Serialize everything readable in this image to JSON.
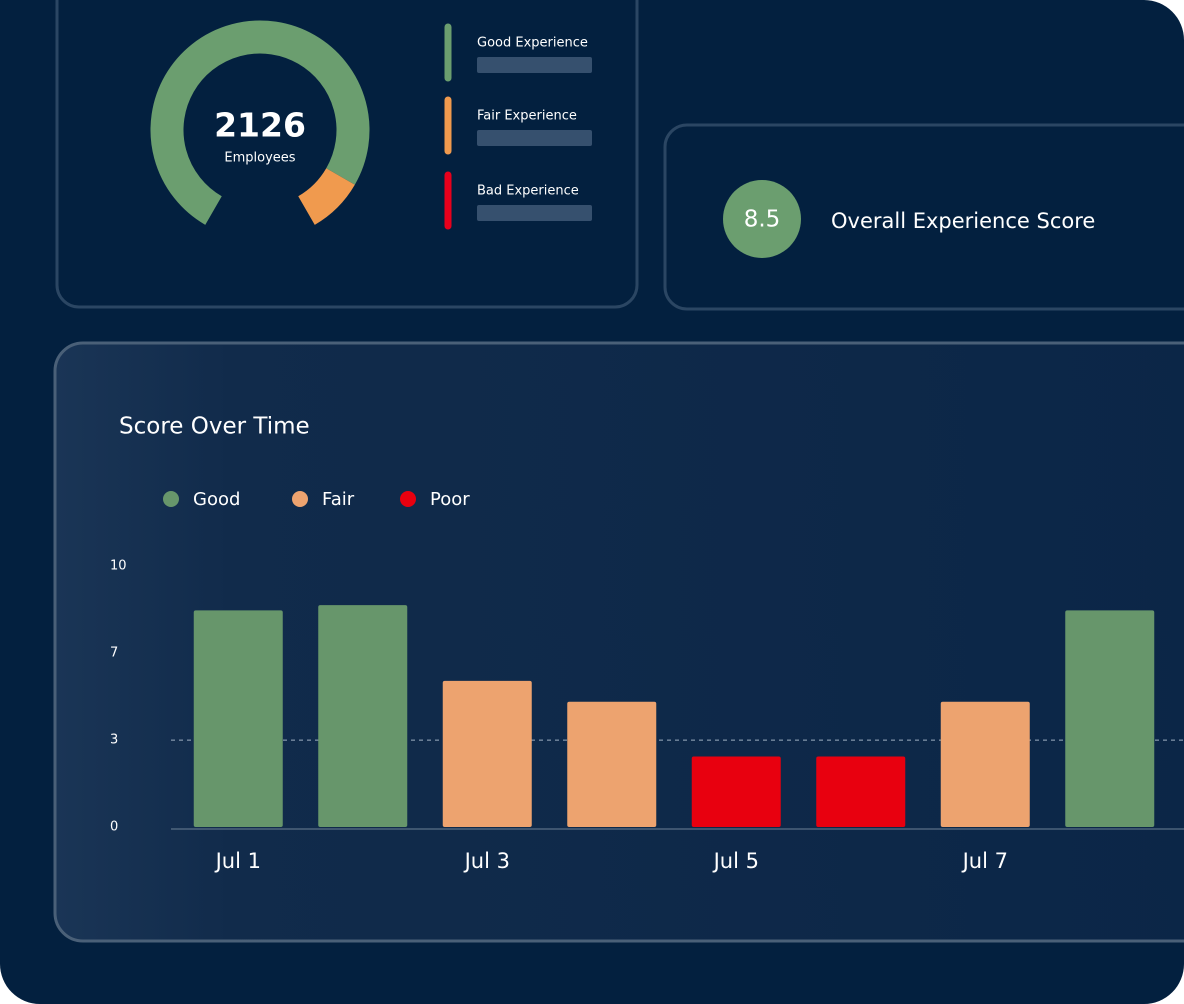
{
  "donut": {
    "center_value": "2126",
    "center_label": "Employees",
    "segments": [
      {
        "name": "Good Experience",
        "color": "#6b9e6f",
        "value": 90
      },
      {
        "name": "Fair Experience",
        "color": "#f09a4e",
        "value": 10
      },
      {
        "name": "Bad Experience",
        "color": "#e8001c",
        "value": 0
      }
    ]
  },
  "score": {
    "value": "8.5",
    "label": "Overall Experience Score"
  },
  "chart_data": {
    "type": "bar",
    "title": "Score Over Time",
    "categories": [
      "Jul 1",
      null,
      "Jul 3",
      null,
      "Jul 5",
      null,
      "Jul 7",
      null
    ],
    "series": [
      {
        "name": "Good",
        "color": "#67966b",
        "values": [
          8.3,
          8.5,
          null,
          null,
          null,
          null,
          null,
          8.3
        ]
      },
      {
        "name": "Fair",
        "color": "#eda36f",
        "values": [
          null,
          null,
          5.6,
          4.8,
          null,
          null,
          4.8,
          null
        ]
      },
      {
        "name": "Poor",
        "color": "#e8000f",
        "values": [
          null,
          null,
          null,
          null,
          2.7,
          2.7,
          null,
          null
        ]
      }
    ],
    "ylim": [
      0,
      10
    ],
    "yticks": [
      0,
      {
        "value": 3.33,
        "label": "3"
      },
      {
        "value": 6.67,
        "label": "7"
      },
      10
    ],
    "threshold": 3.33
  }
}
